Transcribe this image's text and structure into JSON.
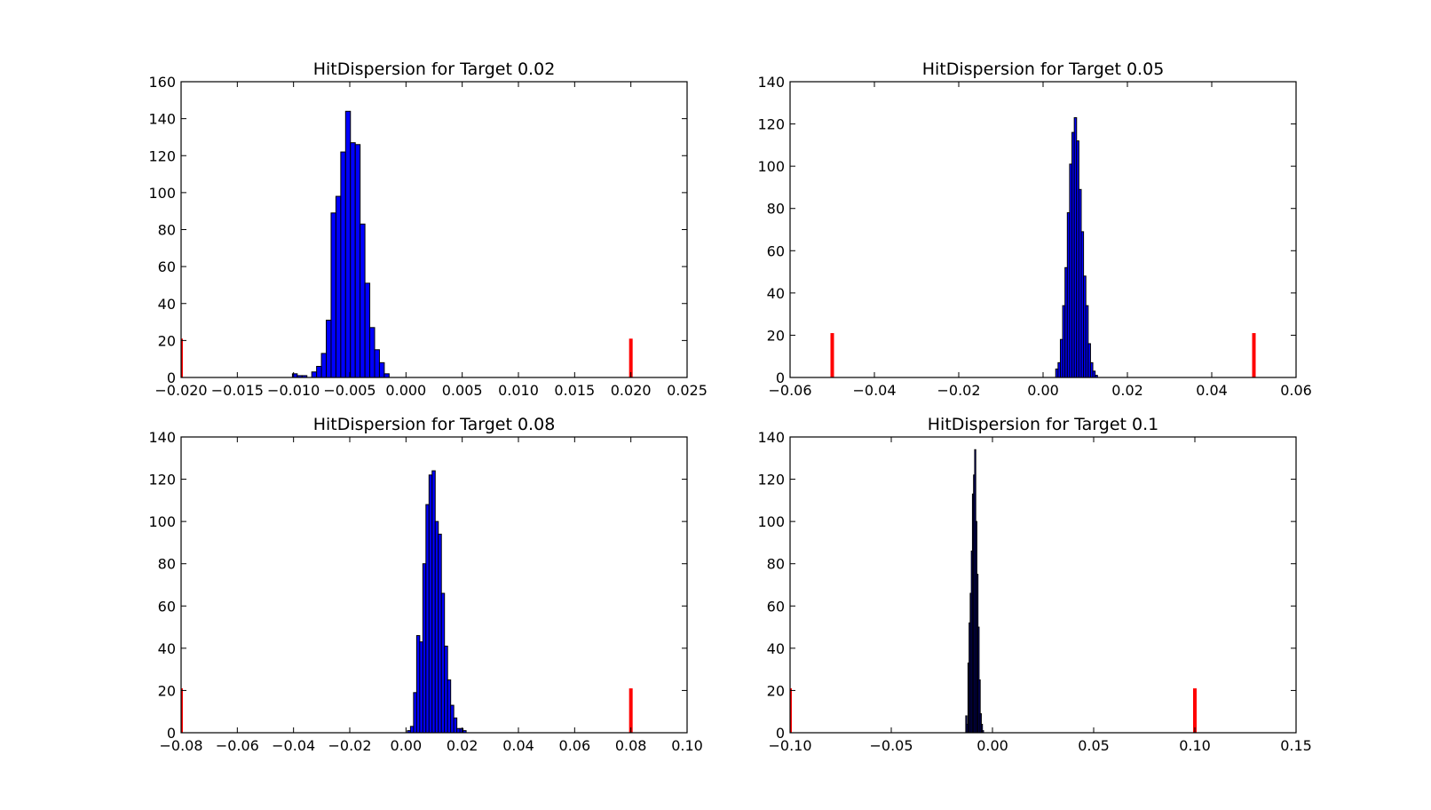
{
  "chart_data": [
    {
      "type": "bar",
      "title": "HitDispersion for Target 0.02",
      "xlim": [
        -0.02,
        0.025
      ],
      "ylim": [
        0,
        160
      ],
      "xticks": [
        -0.02,
        -0.015,
        -0.01,
        -0.005,
        0.0,
        0.005,
        0.01,
        0.015,
        0.02,
        0.025
      ],
      "xtick_labels": [
        "−0.020",
        "−0.015",
        "−0.010",
        "−0.005",
        "0.000",
        "0.005",
        "0.010",
        "0.015",
        "0.020",
        "0.025"
      ],
      "yticks": [
        0,
        20,
        40,
        60,
        80,
        100,
        120,
        140,
        160
      ],
      "ytick_labels": [
        "0",
        "20",
        "40",
        "60",
        "80",
        "100",
        "120",
        "140",
        "160"
      ],
      "bin_start": -0.0101,
      "bin_width": 0.00043,
      "counts": [
        2,
        1,
        1,
        0,
        3,
        6,
        13,
        31,
        89,
        98,
        122,
        144,
        127,
        126,
        83,
        51,
        27,
        15,
        8,
        2
      ],
      "markers": [
        {
          "x": -0.02,
          "height": 21
        },
        {
          "x": 0.02,
          "height": 21
        }
      ]
    },
    {
      "type": "bar",
      "title": "HitDispersion for Target 0.05",
      "xlim": [
        -0.06,
        0.06
      ],
      "ylim": [
        0,
        140
      ],
      "xticks": [
        -0.06,
        -0.04,
        -0.02,
        0.0,
        0.02,
        0.04,
        0.06
      ],
      "xtick_labels": [
        "−0.06",
        "−0.04",
        "−0.02",
        "0.00",
        "0.02",
        "0.04",
        "0.06"
      ],
      "yticks": [
        0,
        20,
        40,
        60,
        80,
        100,
        120,
        140
      ],
      "ytick_labels": [
        "0",
        "20",
        "40",
        "60",
        "80",
        "100",
        "120",
        "140"
      ],
      "bin_start": 0.003,
      "bin_width": 0.00055,
      "counts": [
        4,
        7,
        18,
        34,
        52,
        78,
        101,
        116,
        123,
        112,
        89,
        69,
        48,
        34,
        16,
        7,
        3,
        1
      ],
      "markers": [
        {
          "x": -0.05,
          "height": 21
        },
        {
          "x": 0.05,
          "height": 21
        }
      ]
    },
    {
      "type": "bar",
      "title": "HitDispersion for Target 0.08",
      "xlim": [
        -0.08,
        0.1
      ],
      "ylim": [
        0,
        140
      ],
      "xticks": [
        -0.08,
        -0.06,
        -0.04,
        -0.02,
        0.0,
        0.02,
        0.04,
        0.06,
        0.08,
        0.1
      ],
      "xtick_labels": [
        "−0.08",
        "−0.06",
        "−0.04",
        "−0.02",
        "0.00",
        "0.02",
        "0.04",
        "0.06",
        "0.08",
        "0.10"
      ],
      "yticks": [
        0,
        20,
        40,
        60,
        80,
        100,
        120,
        140
      ],
      "ytick_labels": [
        "0",
        "20",
        "40",
        "60",
        "80",
        "100",
        "120",
        "140"
      ],
      "bin_start": 0.0005,
      "bin_width": 0.0011,
      "counts": [
        1,
        3,
        19,
        46,
        43,
        80,
        108,
        122,
        124,
        100,
        94,
        66,
        41,
        25,
        13,
        7,
        2,
        2,
        1
      ],
      "markers": [
        {
          "x": -0.08,
          "height": 21
        },
        {
          "x": 0.08,
          "height": 21
        }
      ]
    },
    {
      "type": "bar",
      "title": "HitDispersion for Target 0.1",
      "xlim": [
        -0.1,
        0.15
      ],
      "ylim": [
        0,
        140
      ],
      "xticks": [
        -0.1,
        -0.05,
        0.0,
        0.05,
        0.1,
        0.15
      ],
      "xtick_labels": [
        "−0.10",
        "−0.05",
        "0.00",
        "0.05",
        "0.10",
        "0.15"
      ],
      "yticks": [
        0,
        20,
        40,
        60,
        80,
        100,
        120,
        140
      ],
      "ytick_labels": [
        "0",
        "20",
        "40",
        "60",
        "80",
        "100",
        "120",
        "140"
      ],
      "bin_start": -0.0132,
      "bin_width": 0.00055,
      "counts": [
        8,
        4,
        33,
        52,
        66,
        86,
        113,
        122,
        134,
        100,
        75,
        50,
        25,
        9,
        4,
        1
      ],
      "markers": [
        {
          "x": -0.1,
          "height": 21
        },
        {
          "x": 0.1,
          "height": 21
        }
      ]
    }
  ],
  "colors": {
    "bar_fill": "#0000ff",
    "bar_edge": "#000000",
    "marker": "#ff0000",
    "axes": "#000000",
    "background": "#ffffff"
  }
}
